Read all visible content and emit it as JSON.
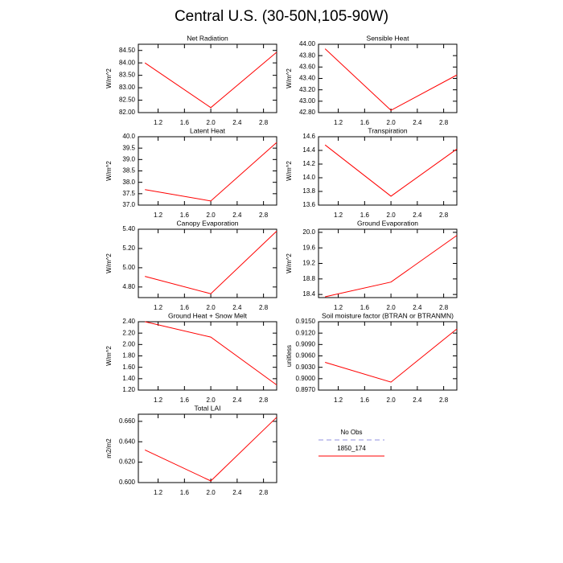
{
  "title": "Central U.S. (30-50N,105-90W)",
  "legend": [
    {
      "name": "No Obs",
      "color": "#9090e0",
      "dash": true
    },
    {
      "name": "1850_174",
      "color": "#ff0000",
      "dash": false
    }
  ],
  "chart_data": [
    {
      "type": "line",
      "title": "Net Radiation",
      "ylabel": "W/m^2",
      "x": [
        1,
        2,
        3
      ],
      "values": [
        84.0,
        82.2,
        84.43
      ],
      "color": "#ff0000",
      "xlim": [
        0.9,
        3.0
      ],
      "xticks": [
        1.2,
        1.6,
        {
          "value": 2,
          "label": "2.0"
        },
        2.4,
        2.8
      ],
      "ylim": [
        82.0,
        84.75
      ],
      "yticks": [
        {
          "value": 82,
          "label": "82.00"
        },
        {
          "value": 82.5,
          "label": "82.50"
        },
        {
          "value": 83,
          "label": "83.00"
        },
        {
          "value": 83.5,
          "label": "83.50"
        },
        {
          "value": 84,
          "label": "84.00"
        },
        {
          "value": 84.5,
          "label": "84.50"
        }
      ]
    },
    {
      "type": "line",
      "title": "Sensible Heat",
      "ylabel": "W/m^2",
      "x": [
        1,
        2,
        3
      ],
      "values": [
        43.92,
        42.84,
        43.46
      ],
      "color": "#ff0000",
      "xlim": [
        0.9,
        3.0
      ],
      "xticks": [
        1.2,
        1.6,
        {
          "value": 2,
          "label": "2.0"
        },
        2.4,
        2.8
      ],
      "ylim": [
        42.8,
        44.0
      ],
      "yticks": [
        {
          "value": 42.8,
          "label": "42.80"
        },
        {
          "value": 43,
          "label": "43.00"
        },
        {
          "value": 43.2,
          "label": "43.20"
        },
        {
          "value": 43.4,
          "label": "43.40"
        },
        {
          "value": 43.6,
          "label": "43.60"
        },
        {
          "value": 43.8,
          "label": "43.80"
        },
        {
          "value": 44,
          "label": "44.00"
        }
      ]
    },
    {
      "type": "line",
      "title": "Latent Heat",
      "ylabel": "W/m^2",
      "x": [
        1,
        2,
        3
      ],
      "values": [
        37.68,
        37.18,
        39.75
      ],
      "color": "#ff0000",
      "xlim": [
        0.9,
        3.0
      ],
      "xticks": [
        1.2,
        1.6,
        {
          "value": 2,
          "label": "2.0"
        },
        2.4,
        2.8
      ],
      "ylim": [
        37.0,
        40.0
      ],
      "yticks": [
        {
          "value": 37,
          "label": "37.0"
        },
        37.5,
        {
          "value": 38,
          "label": "38.0"
        },
        38.5,
        {
          "value": 39,
          "label": "39.0"
        },
        39.5,
        {
          "value": 40,
          "label": "40.0"
        }
      ]
    },
    {
      "type": "line",
      "title": "Transpiration",
      "ylabel": "W/m^2",
      "x": [
        1,
        2,
        3
      ],
      "values": [
        14.48,
        13.73,
        14.42
      ],
      "color": "#ff0000",
      "xlim": [
        0.9,
        3.0
      ],
      "xticks": [
        1.2,
        1.6,
        {
          "value": 2,
          "label": "2.0"
        },
        2.4,
        2.8
      ],
      "ylim": [
        13.6,
        14.6
      ],
      "yticks": [
        13.6,
        13.8,
        {
          "value": 14,
          "label": "14.0"
        },
        14.2,
        14.4,
        14.6
      ]
    },
    {
      "type": "line",
      "title": "Canopy Evaporation",
      "ylabel": "W/m^2",
      "x": [
        1,
        2,
        3
      ],
      "values": [
        4.91,
        4.73,
        5.38
      ],
      "color": "#ff0000",
      "xlim": [
        0.9,
        3.0
      ],
      "xticks": [
        1.2,
        1.6,
        {
          "value": 2,
          "label": "2.0"
        },
        2.4,
        2.8
      ],
      "ylim": [
        4.69,
        5.4
      ],
      "yticks": [
        {
          "value": 4.8,
          "label": "4.80"
        },
        {
          "value": 5,
          "label": "5.00"
        },
        {
          "value": 5.2,
          "label": "5.20"
        },
        {
          "value": 5.4,
          "label": "5.40"
        }
      ]
    },
    {
      "type": "line",
      "title": "Ground Evaporation",
      "ylabel": "W/m^2",
      "x": [
        1,
        2,
        3
      ],
      "values": [
        18.34,
        18.72,
        19.92
      ],
      "color": "#ff0000",
      "xlim": [
        0.9,
        3.0
      ],
      "xticks": [
        1.2,
        1.6,
        {
          "value": 2,
          "label": "2.0"
        },
        2.4,
        2.8
      ],
      "ylim": [
        18.32,
        20.08
      ],
      "yticks": [
        18.4,
        18.8,
        19.2,
        19.6,
        {
          "value": 20,
          "label": "20.0"
        }
      ]
    },
    {
      "type": "line",
      "title": "Ground Heat + Snow Melt",
      "ylabel": "W/m^2",
      "x": [
        1,
        2,
        3
      ],
      "values": [
        2.4,
        2.13,
        1.29
      ],
      "color": "#ff0000",
      "xlim": [
        0.9,
        3.0
      ],
      "xticks": [
        1.2,
        1.6,
        {
          "value": 2,
          "label": "2.0"
        },
        2.4,
        2.8
      ],
      "ylim": [
        1.2,
        2.4
      ],
      "yticks": [
        {
          "value": 1.2,
          "label": "1.20"
        },
        {
          "value": 1.4,
          "label": "1.40"
        },
        {
          "value": 1.6,
          "label": "1.60"
        },
        {
          "value": 1.8,
          "label": "1.80"
        },
        {
          "value": 2,
          "label": "2.00"
        },
        {
          "value": 2.2,
          "label": "2.20"
        },
        {
          "value": 2.4,
          "label": "2.40"
        }
      ]
    },
    {
      "type": "line",
      "title": "Soil moisture factor (BTRAN or BTRANMN)",
      "ylabel": "unitless",
      "x": [
        1,
        2,
        3
      ],
      "values": [
        0.9043,
        0.8991,
        0.9131
      ],
      "color": "#ff0000",
      "xlim": [
        0.9,
        3.0
      ],
      "xticks": [
        1.2,
        1.6,
        {
          "value": 2,
          "label": "2.0"
        },
        2.4,
        2.8
      ],
      "ylim": [
        0.897,
        0.915
      ],
      "yticks": [
        {
          "value": 0.897,
          "label": "0.8970"
        },
        {
          "value": 0.9,
          "label": "0.9000"
        },
        {
          "value": 0.903,
          "label": "0.9030"
        },
        {
          "value": 0.906,
          "label": "0.9060"
        },
        {
          "value": 0.909,
          "label": "0.9090"
        },
        {
          "value": 0.912,
          "label": "0.9120"
        },
        {
          "value": 0.915,
          "label": "0.9150"
        }
      ]
    },
    {
      "type": "line",
      "title": "Total LAI",
      "ylabel": "m2/m2",
      "x": [
        1,
        2,
        3
      ],
      "values": [
        0.632,
        0.6016,
        0.664
      ],
      "color": "#ff0000",
      "xlim": [
        0.9,
        3.0
      ],
      "xticks": [
        1.2,
        1.6,
        {
          "value": 2,
          "label": "2.0"
        },
        2.4,
        2.8
      ],
      "ylim": [
        0.6,
        0.667
      ],
      "yticks": [
        {
          "value": 0.6,
          "label": "0.600"
        },
        {
          "value": 0.62,
          "label": "0.620"
        },
        {
          "value": 0.64,
          "label": "0.640"
        },
        {
          "value": 0.66,
          "label": "0.660"
        }
      ]
    }
  ]
}
